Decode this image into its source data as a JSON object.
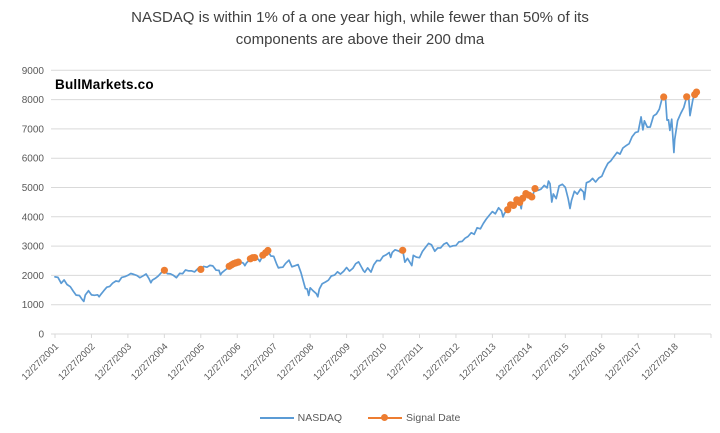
{
  "title": {
    "full": "NASDAQ is within 1% of a one year high, while fewer than 50% of its components are above their 200 dma",
    "line1": "NASDAQ is within 1% of a one year high, while fewer than 50% of its",
    "line2": "components are above their 200 dma"
  },
  "watermark": "BullMarkets.co",
  "colors": {
    "background": "#FFFFFF",
    "gridline": "#D9D9D9",
    "axis_line": "#D9D9D9",
    "axis_text": "#595959",
    "title_text": "#404040",
    "nasdaq_line": "#5B9BD5",
    "signal_marker": "#ED7D31",
    "watermark_text": "#000000"
  },
  "chart_data": {
    "type": "line",
    "title": "NASDAQ is within 1% of a one year high, while fewer than 50% of its components are above their 200 dma",
    "xlabel": "",
    "ylabel": "",
    "grid": true,
    "legend_position": "bottom",
    "x_axis": {
      "unit": "years since first label date",
      "tick_labels": [
        "12/27/2001",
        "12/27/2002",
        "12/27/2003",
        "12/27/2004",
        "12/27/2005",
        "12/27/2006",
        "12/27/2007",
        "12/27/2008",
        "12/27/2009",
        "12/27/2010",
        "12/27/2011",
        "12/27/2012",
        "12/27/2013",
        "12/27/2014",
        "12/27/2015",
        "12/27/2016",
        "12/27/2017",
        "12/27/2018"
      ],
      "label_rotation_deg": 45
    },
    "y_axis": {
      "min": 0,
      "max": 9000,
      "step": 1000,
      "tick_labels": [
        "0",
        "1000",
        "2000",
        "3000",
        "4000",
        "5000",
        "6000",
        "7000",
        "8000",
        "9000"
      ]
    },
    "series": [
      {
        "name": "NASDAQ",
        "type": "line",
        "color": "#5B9BD5",
        "points": [
          [
            0,
            1950
          ],
          [
            0.08,
            1934
          ],
          [
            0.17,
            1731
          ],
          [
            0.25,
            1845
          ],
          [
            0.33,
            1688
          ],
          [
            0.42,
            1616
          ],
          [
            0.5,
            1463
          ],
          [
            0.58,
            1328
          ],
          [
            0.67,
            1315
          ],
          [
            0.75,
            1172
          ],
          [
            0.79,
            1114
          ],
          [
            0.83,
            1330
          ],
          [
            0.92,
            1479
          ],
          [
            1,
            1336
          ],
          [
            1.08,
            1321
          ],
          [
            1.17,
            1338
          ],
          [
            1.21,
            1271
          ],
          [
            1.25,
            1341
          ],
          [
            1.33,
            1464
          ],
          [
            1.42,
            1596
          ],
          [
            1.5,
            1623
          ],
          [
            1.58,
            1735
          ],
          [
            1.67,
            1810
          ],
          [
            1.75,
            1787
          ],
          [
            1.83,
            1932
          ],
          [
            1.92,
            1960
          ],
          [
            2,
            2003
          ],
          [
            2.08,
            2066
          ],
          [
            2.17,
            2030
          ],
          [
            2.25,
            1994
          ],
          [
            2.33,
            1920
          ],
          [
            2.42,
            1987
          ],
          [
            2.5,
            2048
          ],
          [
            2.58,
            1887
          ],
          [
            2.63,
            1752
          ],
          [
            2.67,
            1838
          ],
          [
            2.75,
            1897
          ],
          [
            2.83,
            1975
          ],
          [
            2.92,
            2097
          ],
          [
            3,
            2175
          ],
          [
            3.08,
            2062
          ],
          [
            3.17,
            2052
          ],
          [
            3.25,
            1999
          ],
          [
            3.33,
            1922
          ],
          [
            3.42,
            2068
          ],
          [
            3.5,
            2057
          ],
          [
            3.58,
            2185
          ],
          [
            3.67,
            2152
          ],
          [
            3.75,
            2152
          ],
          [
            3.83,
            2120
          ],
          [
            3.92,
            2233
          ],
          [
            4,
            2205
          ],
          [
            4.08,
            2306
          ],
          [
            4.17,
            2281
          ],
          [
            4.25,
            2340
          ],
          [
            4.33,
            2323
          ],
          [
            4.42,
            2179
          ],
          [
            4.5,
            2172
          ],
          [
            4.54,
            2020
          ],
          [
            4.58,
            2091
          ],
          [
            4.67,
            2184
          ],
          [
            4.75,
            2258
          ],
          [
            4.83,
            2367
          ],
          [
            4.92,
            2432
          ],
          [
            5,
            2415
          ],
          [
            5.08,
            2464
          ],
          [
            5.17,
            2416
          ],
          [
            5.21,
            2331
          ],
          [
            5.25,
            2422
          ],
          [
            5.33,
            2525
          ],
          [
            5.42,
            2605
          ],
          [
            5.5,
            2603
          ],
          [
            5.58,
            2546
          ],
          [
            5.62,
            2475
          ],
          [
            5.67,
            2596
          ],
          [
            5.75,
            2702
          ],
          [
            5.83,
            2859
          ],
          [
            5.92,
            2661
          ],
          [
            6,
            2652
          ],
          [
            6.08,
            2390
          ],
          [
            6.13,
            2255
          ],
          [
            6.17,
            2271
          ],
          [
            6.25,
            2279
          ],
          [
            6.33,
            2413
          ],
          [
            6.42,
            2523
          ],
          [
            6.5,
            2293
          ],
          [
            6.58,
            2326
          ],
          [
            6.67,
            2368
          ],
          [
            6.75,
            2092
          ],
          [
            6.83,
            1721
          ],
          [
            6.87,
            1550
          ],
          [
            6.92,
            1536
          ],
          [
            6.96,
            1316
          ],
          [
            7,
            1577
          ],
          [
            7.08,
            1476
          ],
          [
            7.17,
            1378
          ],
          [
            7.21,
            1269
          ],
          [
            7.25,
            1529
          ],
          [
            7.33,
            1717
          ],
          [
            7.42,
            1774
          ],
          [
            7.5,
            1835
          ],
          [
            7.58,
            1979
          ],
          [
            7.67,
            2009
          ],
          [
            7.75,
            2122
          ],
          [
            7.83,
            2045
          ],
          [
            7.92,
            2145
          ],
          [
            8,
            2269
          ],
          [
            8.08,
            2147
          ],
          [
            8.17,
            2238
          ],
          [
            8.25,
            2398
          ],
          [
            8.33,
            2461
          ],
          [
            8.42,
            2257
          ],
          [
            8.46,
            2160
          ],
          [
            8.5,
            2109
          ],
          [
            8.58,
            2255
          ],
          [
            8.67,
            2114
          ],
          [
            8.75,
            2369
          ],
          [
            8.83,
            2507
          ],
          [
            8.92,
            2498
          ],
          [
            9,
            2653
          ],
          [
            9.08,
            2700
          ],
          [
            9.17,
            2782
          ],
          [
            9.21,
            2616
          ],
          [
            9.25,
            2781
          ],
          [
            9.33,
            2874
          ],
          [
            9.42,
            2835
          ],
          [
            9.5,
            2774
          ],
          [
            9.54,
            2858
          ],
          [
            9.6,
            2450
          ],
          [
            9.67,
            2579
          ],
          [
            9.75,
            2415
          ],
          [
            9.79,
            2335
          ],
          [
            9.83,
            2684
          ],
          [
            9.92,
            2620
          ],
          [
            10,
            2605
          ],
          [
            10.08,
            2814
          ],
          [
            10.17,
            2967
          ],
          [
            10.25,
            3092
          ],
          [
            10.33,
            3046
          ],
          [
            10.42,
            2827
          ],
          [
            10.5,
            2935
          ],
          [
            10.58,
            2940
          ],
          [
            10.67,
            3067
          ],
          [
            10.75,
            3116
          ],
          [
            10.83,
            2977
          ],
          [
            10.92,
            3010
          ],
          [
            11,
            3020
          ],
          [
            11.08,
            3142
          ],
          [
            11.17,
            3160
          ],
          [
            11.25,
            3268
          ],
          [
            11.33,
            3329
          ],
          [
            11.42,
            3456
          ],
          [
            11.5,
            3403
          ],
          [
            11.58,
            3626
          ],
          [
            11.67,
            3590
          ],
          [
            11.75,
            3771
          ],
          [
            11.83,
            3920
          ],
          [
            11.92,
            4060
          ],
          [
            12,
            4177
          ],
          [
            12.08,
            4104
          ],
          [
            12.17,
            4308
          ],
          [
            12.25,
            4199
          ],
          [
            12.29,
            3997
          ],
          [
            12.33,
            4115
          ],
          [
            12.42,
            4243
          ],
          [
            12.5,
            4408
          ],
          [
            12.58,
            4370
          ],
          [
            12.67,
            4580
          ],
          [
            12.75,
            4493
          ],
          [
            12.79,
            4276
          ],
          [
            12.83,
            4631
          ],
          [
            12.92,
            4792
          ],
          [
            13,
            4736
          ],
          [
            13.08,
            4635
          ],
          [
            13.17,
            4964
          ],
          [
            13.25,
            4901
          ],
          [
            13.33,
            4941
          ],
          [
            13.42,
            5070
          ],
          [
            13.5,
            4987
          ],
          [
            13.54,
            5219
          ],
          [
            13.58,
            5128
          ],
          [
            13.63,
            4506
          ],
          [
            13.67,
            4777
          ],
          [
            13.75,
            4620
          ],
          [
            13.83,
            5054
          ],
          [
            13.92,
            5109
          ],
          [
            14,
            5007
          ],
          [
            14.08,
            4614
          ],
          [
            14.13,
            4283
          ],
          [
            14.17,
            4558
          ],
          [
            14.25,
            4870
          ],
          [
            14.33,
            4775
          ],
          [
            14.42,
            4948
          ],
          [
            14.5,
            4843
          ],
          [
            14.52,
            4594
          ],
          [
            14.58,
            5162
          ],
          [
            14.67,
            5213
          ],
          [
            14.75,
            5312
          ],
          [
            14.83,
            5189
          ],
          [
            14.92,
            5324
          ],
          [
            15,
            5383
          ],
          [
            15.08,
            5615
          ],
          [
            15.17,
            5825
          ],
          [
            15.25,
            5912
          ],
          [
            15.33,
            6048
          ],
          [
            15.42,
            6199
          ],
          [
            15.5,
            6140
          ],
          [
            15.58,
            6348
          ],
          [
            15.67,
            6429
          ],
          [
            15.75,
            6496
          ],
          [
            15.83,
            6728
          ],
          [
            15.92,
            6874
          ],
          [
            16,
            6903
          ],
          [
            16.08,
            7411
          ],
          [
            16.13,
            6967
          ],
          [
            16.17,
            7273
          ],
          [
            16.25,
            7063
          ],
          [
            16.33,
            7066
          ],
          [
            16.42,
            7442
          ],
          [
            16.5,
            7510
          ],
          [
            16.58,
            7672
          ],
          [
            16.67,
            8110
          ],
          [
            16.75,
            8046
          ],
          [
            16.79,
            7300
          ],
          [
            16.83,
            7306
          ],
          [
            16.87,
            6950
          ],
          [
            16.92,
            7331
          ],
          [
            16.98,
            6193
          ],
          [
            17,
            6635
          ],
          [
            17.08,
            7282
          ],
          [
            17.17,
            7533
          ],
          [
            17.25,
            7729
          ],
          [
            17.33,
            8095
          ],
          [
            17.38,
            8164
          ],
          [
            17.42,
            7453
          ],
          [
            17.5,
            8006
          ],
          [
            17.55,
            8170
          ],
          [
            17.6,
            8264
          ]
        ]
      },
      {
        "name": "Signal Date",
        "type": "scatter",
        "color": "#ED7D31",
        "marker": "circle",
        "points": [
          [
            3,
            2175
          ],
          [
            4,
            2205
          ],
          [
            4.78,
            2310
          ],
          [
            4.84,
            2355
          ],
          [
            4.9,
            2400
          ],
          [
            4.96,
            2425
          ],
          [
            5.03,
            2455
          ],
          [
            5.36,
            2565
          ],
          [
            5.42,
            2605
          ],
          [
            5.48,
            2608
          ],
          [
            5.7,
            2690
          ],
          [
            5.78,
            2775
          ],
          [
            5.84,
            2850
          ],
          [
            9.54,
            2858
          ],
          [
            12.42,
            4243
          ],
          [
            12.5,
            4408
          ],
          [
            12.58,
            4390
          ],
          [
            12.67,
            4580
          ],
          [
            12.75,
            4493
          ],
          [
            12.83,
            4631
          ],
          [
            12.92,
            4792
          ],
          [
            13,
            4736
          ],
          [
            13.08,
            4680
          ],
          [
            13.17,
            4964
          ],
          [
            16.7,
            8090
          ],
          [
            17.33,
            8095
          ],
          [
            17.55,
            8170
          ],
          [
            17.6,
            8255
          ]
        ]
      }
    ]
  }
}
